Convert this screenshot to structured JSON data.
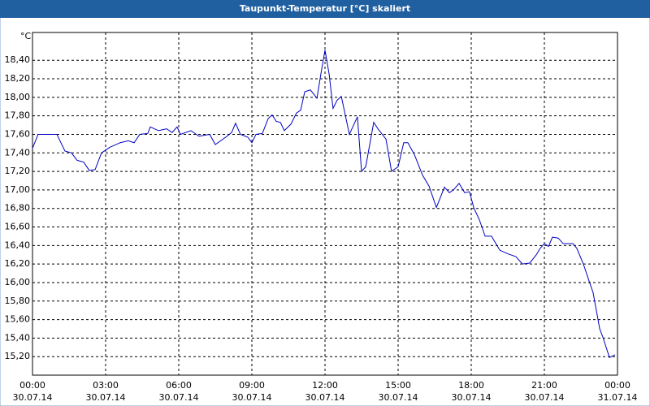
{
  "chart_data": {
    "type": "line",
    "title": "Taupunkt-Temperatur [°C] skaliert",
    "ylabel": "°C",
    "x": [
      0,
      0.23,
      1,
      1.33,
      1.6,
      1.83,
      2.1,
      2.33,
      2.57,
      2.83,
      3.17,
      3.6,
      3.93,
      4.17,
      4.4,
      4.73,
      4.83,
      5.17,
      5.5,
      5.73,
      5.93,
      6.07,
      6.5,
      6.83,
      7.27,
      7.5,
      7.93,
      8.17,
      8.33,
      8.53,
      8.83,
      9,
      9.17,
      9.43,
      9.67,
      9.83,
      10,
      10.17,
      10.33,
      10.6,
      10.83,
      11,
      11.17,
      11.4,
      11.67,
      11.83,
      12,
      12.17,
      12.33,
      12.5,
      12.67,
      13,
      13.33,
      13.5,
      13.67,
      14,
      14.17,
      14.5,
      14.73,
      15,
      15.23,
      15.4,
      15.67,
      16,
      16.27,
      16.57,
      16.9,
      17.1,
      17.27,
      17.5,
      17.73,
      17.93,
      18.1,
      18.33,
      18.57,
      18.83,
      19.17,
      19.5,
      19.83,
      20.1,
      20.4,
      20.67,
      20.83,
      21,
      21.17,
      21.33,
      21.57,
      21.77,
      22.17,
      22.33,
      22.6,
      22.83,
      23,
      23.27,
      23.4,
      23.67,
      23.9
    ],
    "series": [
      {
        "name": "Taupunkt",
        "color": "#0000c0",
        "values": [
          17.45,
          17.6,
          17.6,
          17.42,
          17.4,
          17.32,
          17.3,
          17.21,
          17.22,
          17.4,
          17.46,
          17.51,
          17.53,
          17.51,
          17.6,
          17.61,
          17.68,
          17.64,
          17.66,
          17.62,
          17.68,
          17.6,
          17.64,
          17.58,
          17.6,
          17.49,
          17.57,
          17.62,
          17.72,
          17.6,
          17.57,
          17.51,
          17.6,
          17.61,
          17.77,
          17.81,
          17.74,
          17.73,
          17.64,
          17.71,
          17.83,
          17.86,
          18.06,
          18.08,
          17.99,
          18.25,
          18.51,
          18.25,
          17.88,
          17.97,
          18.01,
          17.6,
          17.79,
          17.2,
          17.25,
          17.73,
          17.66,
          17.55,
          17.2,
          17.25,
          17.51,
          17.51,
          17.38,
          17.16,
          17.04,
          16.81,
          17.03,
          16.97,
          17.0,
          17.07,
          16.97,
          16.98,
          16.81,
          16.68,
          16.5,
          16.5,
          16.35,
          16.31,
          16.28,
          16.2,
          16.21,
          16.3,
          16.37,
          16.42,
          16.39,
          16.49,
          16.48,
          16.42,
          16.42,
          16.37,
          16.2,
          16.02,
          15.89,
          15.5,
          15.41,
          15.19,
          15.22
        ]
      }
    ],
    "xlim": [
      0,
      24
    ],
    "xticks": [
      {
        "value": 0,
        "label": "00:00"
      },
      {
        "value": 3,
        "label": "03:00"
      },
      {
        "value": 6,
        "label": "06:00"
      },
      {
        "value": 9,
        "label": "09:00"
      },
      {
        "value": 12,
        "label": "12:00"
      },
      {
        "value": 15,
        "label": "15:00"
      },
      {
        "value": 18,
        "label": "18:00"
      },
      {
        "value": 21,
        "label": "21:00"
      },
      {
        "value": 24,
        "label": "00:00"
      }
    ],
    "xtick_dates": [
      "30.07.14",
      "30.07.14",
      "30.07.14",
      "30.07.14",
      "30.07.14",
      "30.07.14",
      "30.07.14",
      "30.07.14",
      "31.07.14"
    ],
    "ylim": [
      15.0,
      18.7
    ],
    "yticks": [
      {
        "value": 15.2,
        "label": "15,20"
      },
      {
        "value": 15.4,
        "label": "15,40"
      },
      {
        "value": 15.6,
        "label": "15,60"
      },
      {
        "value": 15.8,
        "label": "15,80"
      },
      {
        "value": 16.0,
        "label": "16,00"
      },
      {
        "value": 16.2,
        "label": "16,20"
      },
      {
        "value": 16.4,
        "label": "16,40"
      },
      {
        "value": 16.6,
        "label": "16,60"
      },
      {
        "value": 16.8,
        "label": "16,80"
      },
      {
        "value": 17.0,
        "label": "17,00"
      },
      {
        "value": 17.2,
        "label": "17,20"
      },
      {
        "value": 17.4,
        "label": "17,40"
      },
      {
        "value": 17.6,
        "label": "17,60"
      },
      {
        "value": 17.8,
        "label": "17,80"
      },
      {
        "value": 18.0,
        "label": "18,00"
      },
      {
        "value": 18.2,
        "label": "18,20"
      },
      {
        "value": 18.4,
        "label": "18,40"
      }
    ],
    "grid": true
  }
}
